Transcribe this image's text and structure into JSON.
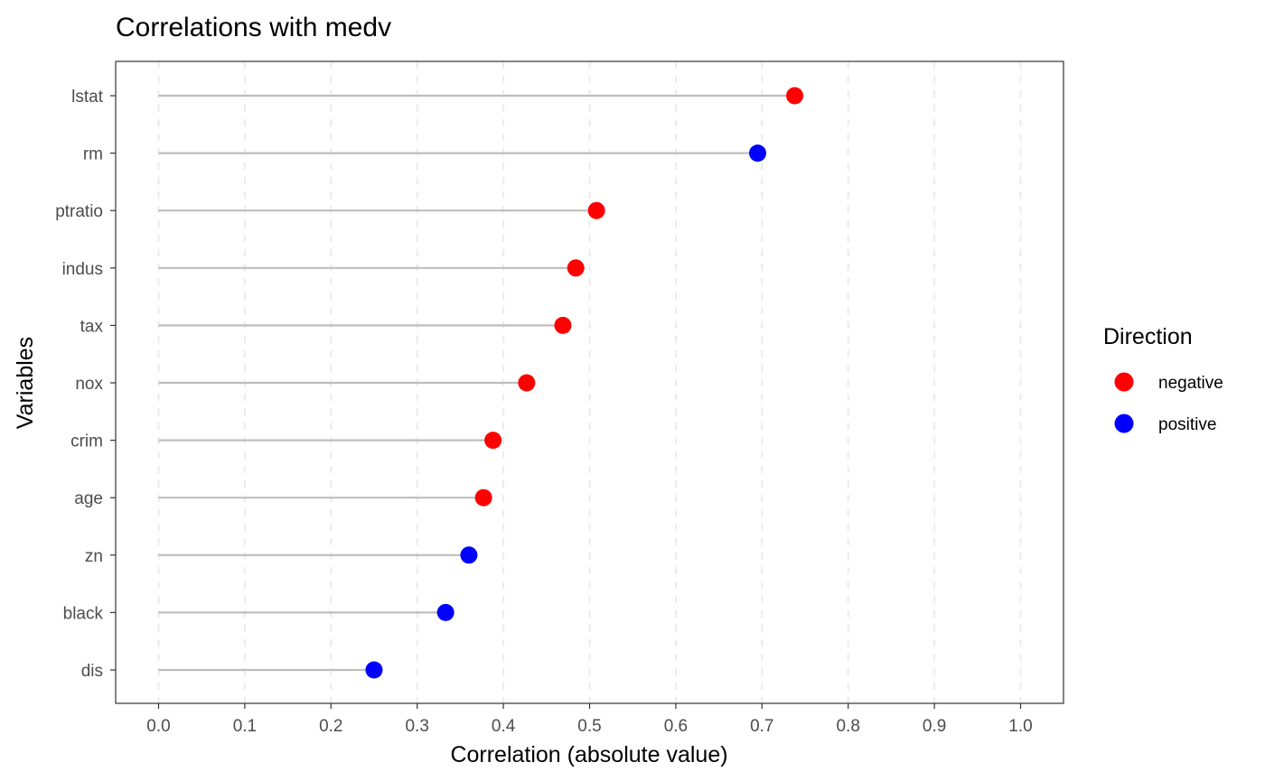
{
  "chart_data": {
    "type": "lollipop",
    "title": "Correlations with medv",
    "xlabel": "Correlation (absolute value)",
    "ylabel": "Variables",
    "xlim": [
      -0.05,
      1.05
    ],
    "xticks": [
      0.0,
      0.1,
      0.2,
      0.3,
      0.4,
      0.5,
      0.6,
      0.7,
      0.8,
      0.9,
      1.0
    ],
    "xtick_labels": [
      "0.0",
      "0.1",
      "0.2",
      "0.3",
      "0.4",
      "0.5",
      "0.6",
      "0.7",
      "0.8",
      "0.9",
      "1.0"
    ],
    "grid": {
      "x_major": "dashed",
      "y": false
    },
    "categories": [
      "lstat",
      "rm",
      "ptratio",
      "indus",
      "tax",
      "nox",
      "crim",
      "age",
      "zn",
      "black",
      "dis"
    ],
    "values": [
      0.738,
      0.695,
      0.508,
      0.484,
      0.469,
      0.427,
      0.388,
      0.377,
      0.36,
      0.333,
      0.25
    ],
    "direction": [
      "negative",
      "positive",
      "negative",
      "negative",
      "negative",
      "negative",
      "negative",
      "negative",
      "positive",
      "positive",
      "positive"
    ],
    "stem_color": "#bebebe",
    "legend": {
      "title": "Direction",
      "placement": "right",
      "entries": [
        {
          "label": "negative",
          "color": "#ff0000"
        },
        {
          "label": "positive",
          "color": "#0000ff"
        }
      ]
    }
  }
}
